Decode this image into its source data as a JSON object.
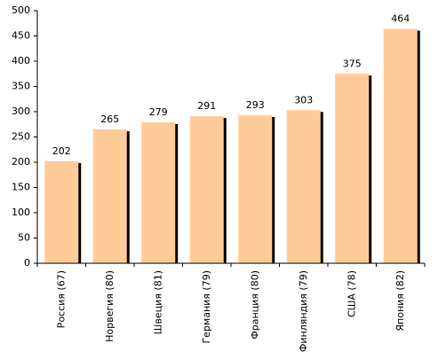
{
  "chart_data": {
    "type": "bar",
    "categories": [
      "Россия (67)",
      "Норвегия (80)",
      "Швеция (81)",
      "Германия (79)",
      "Франция (80)",
      "Финляндия (79)",
      "США (78)",
      "Япония (82)"
    ],
    "values": [
      202,
      265,
      279,
      291,
      293,
      303,
      375,
      464
    ],
    "color": "#ffcc99",
    "ylim": [
      0,
      500
    ],
    "yticks": [
      0,
      50,
      100,
      150,
      200,
      250,
      300,
      350,
      400,
      450,
      500
    ],
    "grid": false
  }
}
